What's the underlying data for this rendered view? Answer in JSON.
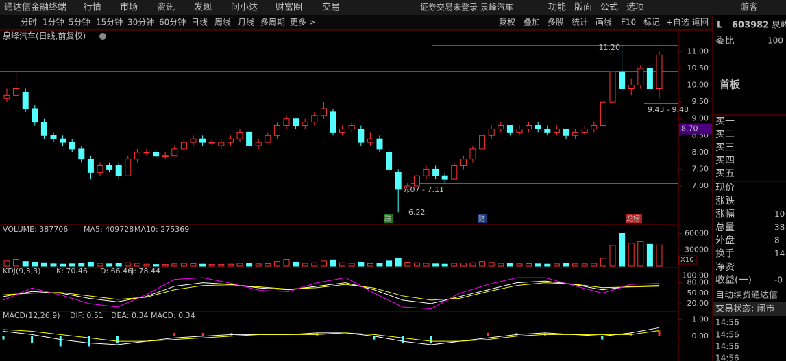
{
  "header": {
    "app": "通达信金融终端",
    "menu": [
      "行情",
      "市场",
      "资讯",
      "发现",
      "问小达",
      "财富圈",
      "交易"
    ],
    "notice": "证券交易未登录  泉峰汽车",
    "tools": [
      "功能",
      "版面",
      "公式",
      "选项"
    ],
    "user": "游客"
  },
  "toolbar": {
    "periods": [
      "分时",
      "1分钟",
      "5分钟",
      "15分钟",
      "30分钟",
      "60分钟",
      "日线",
      "周线",
      "月线",
      "多周期",
      "更多 >"
    ],
    "actions": [
      "复权",
      "叠加",
      "多股",
      "统计",
      "画线",
      "F10",
      "标记",
      "+自选",
      "返回"
    ]
  },
  "chart": {
    "title": "泉峰汽车(日线,前复权)",
    "price_axis": {
      "ylim": [
        5.9,
        11.6
      ],
      "ticks": [
        {
          "value": 11,
          "label": "11.00"
        },
        {
          "value": 10.5,
          "label": "10.50"
        },
        {
          "value": 10,
          "label": "10.00"
        },
        {
          "value": 9.5,
          "label": "9.50"
        },
        {
          "value": 9,
          "label": "9.00"
        },
        {
          "value": 8.5,
          "label": "8.50"
        },
        {
          "value": 8,
          "label": "8.00"
        },
        {
          "value": 7.5,
          "label": "7.50"
        },
        {
          "value": 7,
          "label": "7.00"
        }
      ],
      "marker": {
        "value": 8.7,
        "label": "8.70"
      }
    },
    "candles": [
      [
        9.6,
        9.9,
        9.5,
        9.7
      ],
      [
        9.7,
        10.4,
        9.6,
        9.9
      ],
      [
        9.8,
        9.9,
        9.2,
        9.3
      ],
      [
        9.3,
        9.4,
        8.8,
        8.9
      ],
      [
        8.9,
        9.0,
        8.4,
        8.5
      ],
      [
        8.5,
        8.6,
        8.3,
        8.4
      ],
      [
        8.4,
        8.5,
        8.2,
        8.3
      ],
      [
        8.3,
        8.4,
        8.0,
        8.1
      ],
      [
        8.1,
        8.2,
        7.7,
        7.8
      ],
      [
        7.8,
        7.9,
        7.2,
        7.4
      ],
      [
        7.4,
        7.7,
        7.3,
        7.6
      ],
      [
        7.6,
        7.7,
        7.4,
        7.5
      ],
      [
        7.6,
        7.7,
        7.2,
        7.3
      ],
      [
        7.3,
        7.9,
        7.3,
        7.8
      ],
      [
        7.8,
        8.1,
        7.7,
        8.0
      ],
      [
        8.0,
        8.1,
        7.9,
        8.0
      ],
      [
        8.0,
        8.1,
        7.8,
        7.9
      ],
      [
        7.9,
        8.0,
        7.8,
        7.9
      ],
      [
        7.9,
        8.2,
        7.9,
        8.1
      ],
      [
        8.1,
        8.4,
        8.0,
        8.3
      ],
      [
        8.3,
        8.5,
        8.2,
        8.4
      ],
      [
        8.4,
        8.5,
        8.2,
        8.3
      ],
      [
        8.3,
        8.4,
        8.2,
        8.3
      ],
      [
        8.2,
        8.4,
        8.1,
        8.3
      ],
      [
        8.3,
        8.5,
        8.2,
        8.4
      ],
      [
        8.4,
        8.7,
        8.3,
        8.6
      ],
      [
        8.6,
        8.6,
        8.1,
        8.2
      ],
      [
        8.2,
        8.4,
        8.1,
        8.3
      ],
      [
        8.3,
        8.6,
        8.3,
        8.5
      ],
      [
        8.5,
        8.9,
        8.4,
        8.8
      ],
      [
        8.8,
        9.1,
        8.7,
        9.0
      ],
      [
        9.0,
        9.0,
        8.7,
        8.8
      ],
      [
        8.8,
        9.0,
        8.7,
        8.9
      ],
      [
        8.9,
        9.2,
        8.8,
        9.1
      ],
      [
        9.1,
        9.5,
        9.0,
        9.3
      ],
      [
        9.2,
        9.3,
        8.5,
        8.6
      ],
      [
        8.6,
        8.8,
        8.5,
        8.7
      ],
      [
        8.7,
        8.9,
        8.6,
        8.8
      ],
      [
        8.7,
        8.8,
        8.2,
        8.3
      ],
      [
        8.3,
        8.6,
        8.2,
        8.4
      ],
      [
        8.4,
        8.5,
        8.0,
        8.1
      ],
      [
        8.0,
        8.1,
        7.4,
        7.5
      ],
      [
        7.4,
        7.5,
        6.22,
        6.9
      ],
      [
        6.9,
        7.1,
        6.8,
        7.0
      ],
      [
        7.0,
        7.4,
        6.9,
        7.3
      ],
      [
        7.3,
        7.6,
        7.2,
        7.5
      ],
      [
        7.5,
        7.6,
        7.2,
        7.3
      ],
      [
        7.3,
        7.4,
        7.1,
        7.2
      ],
      [
        7.2,
        7.7,
        7.2,
        7.6
      ],
      [
        7.6,
        7.9,
        7.5,
        7.8
      ],
      [
        7.8,
        8.2,
        7.7,
        8.1
      ],
      [
        8.1,
        8.6,
        8.0,
        8.5
      ],
      [
        8.5,
        8.8,
        8.4,
        8.7
      ],
      [
        8.7,
        8.9,
        8.6,
        8.8
      ],
      [
        8.8,
        8.8,
        8.5,
        8.6
      ],
      [
        8.6,
        8.8,
        8.5,
        8.7
      ],
      [
        8.7,
        8.9,
        8.6,
        8.8
      ],
      [
        8.8,
        8.9,
        8.6,
        8.7
      ],
      [
        8.7,
        8.8,
        8.5,
        8.6
      ],
      [
        8.6,
        8.8,
        8.5,
        8.7
      ],
      [
        8.7,
        8.7,
        8.4,
        8.5
      ],
      [
        8.5,
        8.7,
        8.4,
        8.6
      ],
      [
        8.6,
        8.8,
        8.5,
        8.7
      ],
      [
        8.7,
        8.9,
        8.6,
        8.8
      ],
      [
        8.8,
        9.5,
        8.8,
        9.5
      ],
      [
        9.5,
        10.4,
        9.5,
        10.4
      ],
      [
        10.4,
        11.2,
        9.8,
        9.9
      ],
      [
        9.9,
        10.2,
        9.7,
        10.0
      ],
      [
        10.0,
        10.6,
        9.9,
        10.5
      ],
      [
        10.5,
        10.6,
        9.8,
        9.9
      ],
      [
        9.9,
        11.0,
        9.6,
        10.9
      ]
    ],
    "annotations": {
      "high": "11.20",
      "range_high": "9.43 - 9.48",
      "range_low": "7.07 - 7.11",
      "low": "6.22"
    },
    "tags": [
      "跌",
      "财",
      "龙榜"
    ],
    "volume": {
      "header": [
        "VOLUME: 387706",
        "MA5: 409728",
        "MA10: 275369"
      ],
      "ylim": [
        0,
        72000
      ],
      "ticks": [
        60000,
        30000
      ],
      "unit": "X10",
      "values": [
        9000,
        12000,
        8000,
        7000,
        6000,
        4000,
        3500,
        4000,
        5000,
        7000,
        5000,
        4000,
        4500,
        6000,
        5000,
        3500,
        3000,
        3000,
        4000,
        5000,
        4500,
        3500,
        3000,
        3000,
        3500,
        5000,
        5500,
        4000,
        4500,
        8000,
        12000,
        7000,
        5000,
        6000,
        9000,
        11000,
        6000,
        5000,
        7000,
        4500,
        5000,
        9000,
        14000,
        7000,
        6000,
        5000,
        4000,
        3500,
        5000,
        5500,
        6000,
        8000,
        6500,
        5000,
        4500,
        4000,
        4500,
        4000,
        3500,
        4000,
        4500,
        4000,
        4000,
        5000,
        14000,
        38000,
        60000,
        42000,
        45000,
        40000,
        38770
      ]
    },
    "kdj": {
      "header": [
        "KDJ(9,3,3)",
        "K: 70.46",
        "D: 66.46",
        "J: 78.44"
      ],
      "ylim": [
        0,
        115
      ],
      "ticks": [
        {
          "value": 100,
          "label": "100.00"
        },
        {
          "value": 80,
          "label": "80.00"
        },
        {
          "value": 50,
          "label": "50.00"
        },
        {
          "value": 20,
          "label": "20.00"
        }
      ],
      "k": [
        40,
        55,
        50,
        35,
        25,
        40,
        70,
        80,
        75,
        65,
        60,
        70,
        80,
        60,
        30,
        20,
        40,
        60,
        80,
        85,
        75,
        60,
        70,
        72
      ],
      "d": [
        45,
        50,
        52,
        42,
        32,
        38,
        60,
        72,
        74,
        68,
        62,
        66,
        75,
        65,
        42,
        30,
        35,
        55,
        72,
        80,
        76,
        66,
        68,
        70
      ],
      "j": [
        30,
        65,
        45,
        20,
        10,
        45,
        90,
        95,
        78,
        58,
        55,
        80,
        95,
        50,
        10,
        5,
        50,
        75,
        95,
        95,
        72,
        50,
        75,
        78
      ]
    },
    "macd": {
      "header": [
        "MACD(12,26,9)",
        "DIF: 0.51",
        "DEA: 0.34",
        "MACD: 0.34"
      ],
      "ylim": [
        -1.4,
        1.3
      ],
      "ticks": [
        {
          "value": 1,
          "label": "1.00"
        },
        {
          "value": 0,
          "label": "0.00"
        }
      ],
      "dif": [
        0.3,
        0.1,
        -0.2,
        -0.4,
        -0.5,
        -0.3,
        -0.1,
        0.0,
        0.1,
        0.1,
        0.1,
        0.2,
        0.2,
        0.0,
        -0.3,
        -0.5,
        -0.3,
        -0.1,
        0.1,
        0.2,
        0.1,
        0.0,
        0.2,
        0.51
      ],
      "dea": [
        0.4,
        0.3,
        0.1,
        -0.1,
        -0.3,
        -0.3,
        -0.2,
        -0.1,
        0.0,
        0.1,
        0.1,
        0.1,
        0.2,
        0.1,
        -0.1,
        -0.3,
        -0.3,
        -0.2,
        0.0,
        0.1,
        0.1,
        0.1,
        0.1,
        0.34
      ],
      "hist": [
        -0.2,
        -0.4,
        -0.6,
        -0.6,
        -0.4,
        0,
        0.2,
        0.2,
        0.2,
        0,
        0,
        0.2,
        0,
        -0.2,
        -0.4,
        -0.4,
        0,
        0.2,
        0.2,
        0.2,
        0,
        -0.2,
        0.2,
        0.34
      ]
    }
  },
  "side_panel": {
    "flag": "L",
    "code": "603982",
    "name": "泉峰",
    "ratio_label": "委比",
    "ratio_value": "100",
    "board": "首板",
    "bids": [
      "买一",
      "买二",
      "买三",
      "买四",
      "买五"
    ],
    "rows": [
      [
        "现价",
        ""
      ],
      [
        "涨跌",
        ""
      ],
      [
        "涨幅",
        "10"
      ],
      [
        "总量",
        "38"
      ],
      [
        "外盘",
        "8"
      ],
      [
        "换手",
        "14"
      ],
      [
        "净资",
        ""
      ],
      [
        "收益(一)",
        "-0"
      ]
    ],
    "promo": "自动续费通达信",
    "status": "交易状态: 闭市",
    "times": [
      "14:56",
      "14:56",
      "14:56",
      "14:56"
    ]
  }
}
